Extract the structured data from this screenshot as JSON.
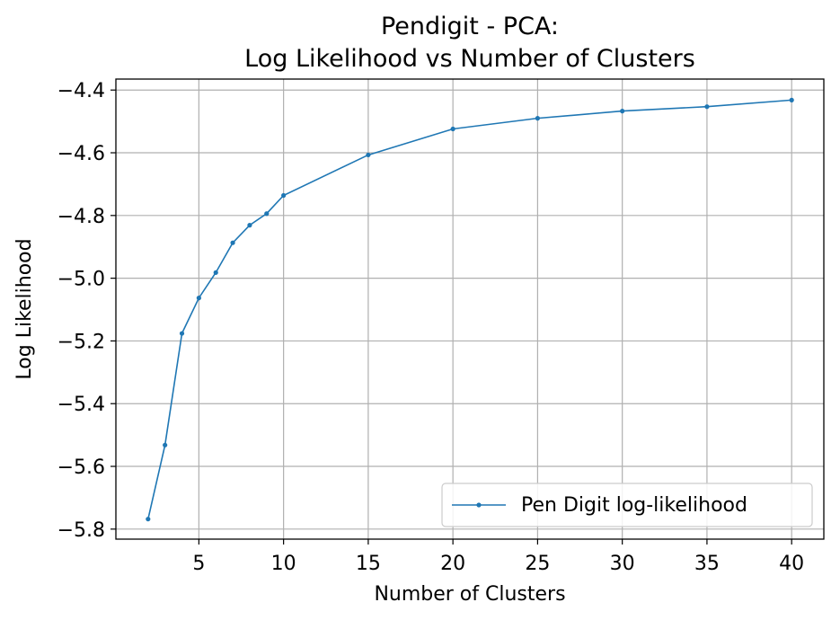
{
  "chart_data": {
    "type": "line",
    "title_lines": [
      "Pendigit - PCA:",
      "Log Likelihood vs Number of Clusters"
    ],
    "xlabel": "Number of Clusters",
    "ylabel": "Log Likelihood",
    "xlim": [
      0.1,
      41.9
    ],
    "ylim": [
      -5.832,
      -4.365
    ],
    "xticks": [
      5,
      10,
      15,
      20,
      25,
      30,
      35,
      40
    ],
    "xtick_labels": [
      "5",
      "10",
      "15",
      "20",
      "25",
      "30",
      "35",
      "40"
    ],
    "yticks": [
      -4.4,
      -4.6,
      -4.8,
      -5.0,
      -5.2,
      -5.4,
      -5.6,
      -5.8
    ],
    "ytick_labels": [
      "−4.4",
      "−4.6",
      "−4.8",
      "−5.0",
      "−5.2",
      "−5.4",
      "−5.6",
      "−5.8"
    ],
    "grid": true,
    "legend_position": "lower-right",
    "series": [
      {
        "name": "Pen Digit log-likelihood",
        "color": "#1f77b4",
        "x": [
          2,
          3,
          4,
          5,
          6,
          7,
          8,
          9,
          10,
          15,
          20,
          25,
          30,
          35,
          40
        ],
        "y": [
          -5.768,
          -5.532,
          -5.176,
          -5.063,
          -4.982,
          -4.887,
          -4.831,
          -4.794,
          -4.736,
          -4.607,
          -4.524,
          -4.49,
          -4.467,
          -4.453,
          -4.432
        ]
      }
    ]
  }
}
